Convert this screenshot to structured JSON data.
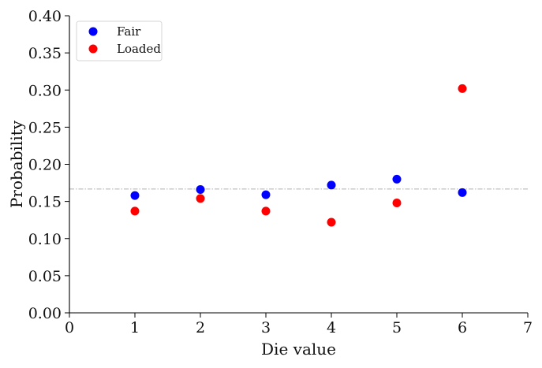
{
  "chart_data": {
    "type": "scatter",
    "xlabel": "Die value",
    "ylabel": "Probability",
    "xlim": [
      0,
      7
    ],
    "ylim": [
      0,
      0.4
    ],
    "xticks": [
      "0",
      "1",
      "2",
      "3",
      "4",
      "5",
      "6",
      "7"
    ],
    "yticks": [
      "0.00",
      "0.05",
      "0.10",
      "0.15",
      "0.20",
      "0.25",
      "0.30",
      "0.35",
      "0.40"
    ],
    "grid": false,
    "legend_position": "top-left",
    "reference_line": {
      "y": 0.1667,
      "style": "dash-dot",
      "color": "#b0b0b0"
    },
    "series": [
      {
        "name": "Fair",
        "color": "#0000ff",
        "points": [
          {
            "x": 1,
            "y": 0.158
          },
          {
            "x": 2,
            "y": 0.166
          },
          {
            "x": 3,
            "y": 0.159
          },
          {
            "x": 4,
            "y": 0.172
          },
          {
            "x": 5,
            "y": 0.18
          },
          {
            "x": 6,
            "y": 0.162
          }
        ]
      },
      {
        "name": "Loaded",
        "color": "#ff0000",
        "points": [
          {
            "x": 1,
            "y": 0.137
          },
          {
            "x": 2,
            "y": 0.154
          },
          {
            "x": 3,
            "y": 0.137
          },
          {
            "x": 4,
            "y": 0.122
          },
          {
            "x": 5,
            "y": 0.148
          },
          {
            "x": 6,
            "y": 0.302
          }
        ]
      }
    ]
  }
}
